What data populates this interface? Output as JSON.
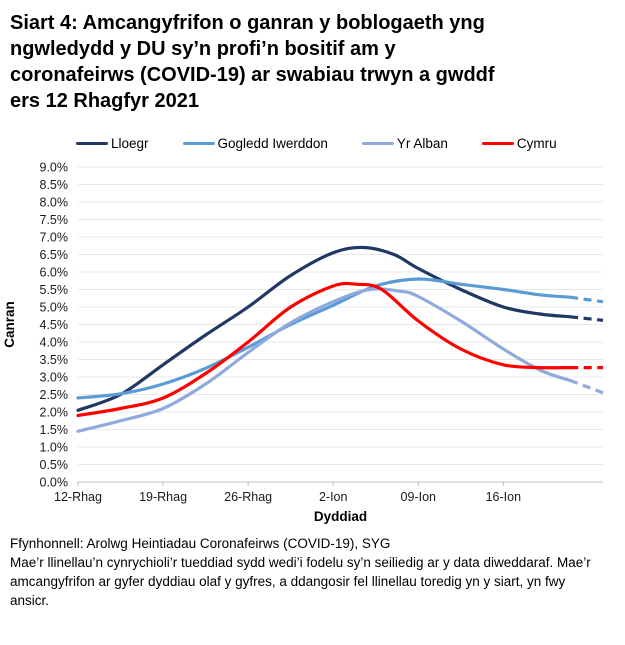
{
  "title": {
    "lines": [
      "Siart 4: Amcangyfrifon o ganran y boblogaeth yng",
      "ngwledydd y DU sy’n profi’n bositif am y",
      "coronafeirws (COVID-19) ar swabiau trwyn a gwddf",
      "ers 12 Rhagfyr 2021"
    ]
  },
  "chart_data": {
    "type": "line",
    "xlabel": "Dyddiad",
    "ylabel": "Canran",
    "ylim": [
      0,
      9
    ],
    "ytick_step": 0.5,
    "ytick_labels": [
      "0.0%",
      "0.5%",
      "1.0%",
      "1.5%",
      "2.0%",
      "2.5%",
      "3.0%",
      "3.5%",
      "4.0%",
      "4.5%",
      "5.0%",
      "5.5%",
      "6.0%",
      "6.5%",
      "7.0%",
      "7.5%",
      "8.0%",
      "8.5%",
      "9.0%"
    ],
    "xlim_days": [
      0,
      43.2
    ],
    "xticks": [
      {
        "day": 0,
        "label": "12-Rhag"
      },
      {
        "day": 7,
        "label": "19-Rhag"
      },
      {
        "day": 14,
        "label": "26-Rhag"
      },
      {
        "day": 21,
        "label": "2-Ion"
      },
      {
        "day": 28,
        "label": "09-Ion"
      },
      {
        "day": 35,
        "label": "16-Ion"
      }
    ],
    "grid": true,
    "legend_position": "top",
    "series": [
      {
        "name": "Lloegr",
        "color": "#1F3864",
        "solid": [
          [
            0,
            2.05
          ],
          [
            3.5,
            2.5
          ],
          [
            7,
            3.35
          ],
          [
            10.5,
            4.2
          ],
          [
            14,
            5.0
          ],
          [
            17.5,
            5.9
          ],
          [
            21,
            6.55
          ],
          [
            23.5,
            6.7
          ],
          [
            26,
            6.5
          ],
          [
            28,
            6.1
          ],
          [
            31.5,
            5.5
          ],
          [
            35,
            5.0
          ],
          [
            38,
            4.8
          ],
          [
            40.5,
            4.72
          ]
        ],
        "dashed": [
          [
            40.5,
            4.72
          ],
          [
            43.2,
            4.62
          ]
        ]
      },
      {
        "name": "Gogledd Iwerddon",
        "color": "#5B9BD5",
        "solid": [
          [
            0,
            2.4
          ],
          [
            3.5,
            2.52
          ],
          [
            7,
            2.8
          ],
          [
            10.5,
            3.25
          ],
          [
            14,
            3.85
          ],
          [
            17.5,
            4.5
          ],
          [
            21,
            5.05
          ],
          [
            24.5,
            5.6
          ],
          [
            28,
            5.8
          ],
          [
            31.5,
            5.65
          ],
          [
            35,
            5.5
          ],
          [
            38,
            5.35
          ],
          [
            40.5,
            5.28
          ]
        ],
        "dashed": [
          [
            40.5,
            5.28
          ],
          [
            43.2,
            5.15
          ]
        ]
      },
      {
        "name": "Yr Alban",
        "color": "#8FAADC",
        "solid": [
          [
            0,
            1.45
          ],
          [
            3.5,
            1.75
          ],
          [
            7,
            2.1
          ],
          [
            10.5,
            2.8
          ],
          [
            14,
            3.7
          ],
          [
            17.5,
            4.55
          ],
          [
            21,
            5.15
          ],
          [
            24,
            5.5
          ],
          [
            26.5,
            5.45
          ],
          [
            28,
            5.3
          ],
          [
            31.5,
            4.6
          ],
          [
            35,
            3.8
          ],
          [
            38,
            3.2
          ],
          [
            40.5,
            2.9
          ]
        ],
        "dashed": [
          [
            40.5,
            2.9
          ],
          [
            43.2,
            2.55
          ]
        ]
      },
      {
        "name": "Cymru",
        "color": "#FF0000",
        "solid": [
          [
            0,
            1.9
          ],
          [
            3.5,
            2.1
          ],
          [
            7,
            2.4
          ],
          [
            10.5,
            3.1
          ],
          [
            14,
            4.0
          ],
          [
            17.5,
            5.0
          ],
          [
            21,
            5.6
          ],
          [
            23,
            5.65
          ],
          [
            25,
            5.5
          ],
          [
            28,
            4.6
          ],
          [
            31.5,
            3.8
          ],
          [
            35,
            3.35
          ],
          [
            38,
            3.27
          ],
          [
            40.5,
            3.27
          ]
        ],
        "dashed": [
          [
            40.5,
            3.27
          ],
          [
            43.2,
            3.27
          ]
        ]
      }
    ]
  },
  "footer": {
    "source": "Ffynhonnell: Arolwg Heintiadau Coronafeirws (COVID-19), SYG",
    "note": "Mae’r llinellau’n cynrychioli’r tueddiad sydd wedi’i fodelu sy’n seiliedig ar y data diweddaraf. Mae’r amcangyfrifon ar gyfer dyddiau olaf y gyfres, a ddangosir fel llinellau toredig yn y siart, yn fwy ansicr."
  }
}
